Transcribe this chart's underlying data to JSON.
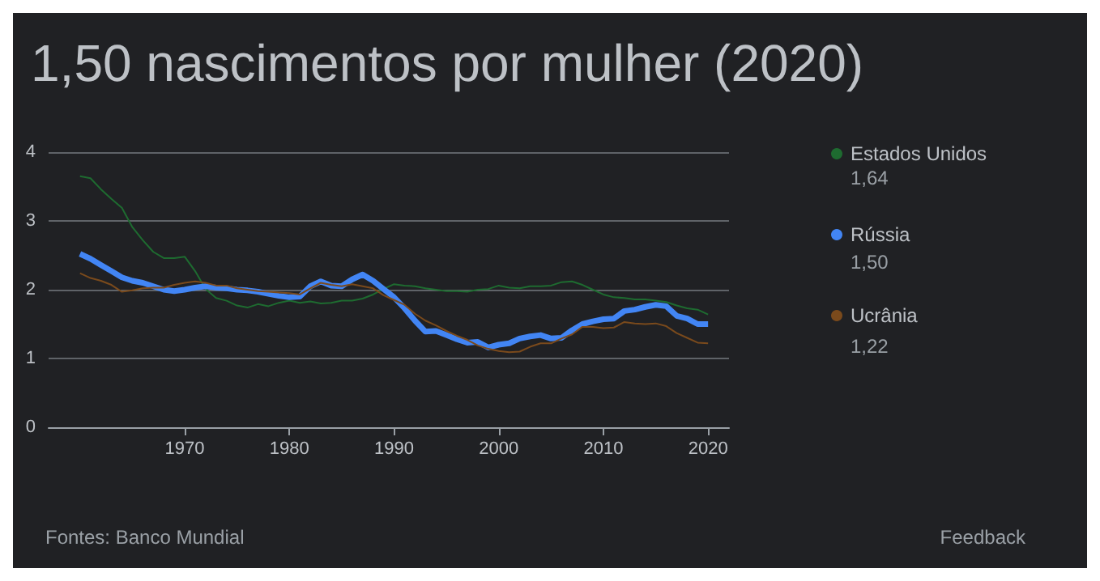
{
  "chart_data": {
    "type": "line",
    "title": "1,50 nascimentos por mulher (2020)",
    "x": [
      1960,
      1961,
      1962,
      1963,
      1964,
      1965,
      1966,
      1967,
      1968,
      1969,
      1970,
      1971,
      1972,
      1973,
      1974,
      1975,
      1976,
      1977,
      1978,
      1979,
      1980,
      1981,
      1982,
      1983,
      1984,
      1985,
      1986,
      1987,
      1988,
      1989,
      1990,
      1991,
      1992,
      1993,
      1994,
      1995,
      1996,
      1997,
      1998,
      1999,
      2000,
      2001,
      2002,
      2003,
      2004,
      2005,
      2006,
      2007,
      2008,
      2009,
      2010,
      2011,
      2012,
      2013,
      2014,
      2015,
      2016,
      2017,
      2018,
      2019,
      2020
    ],
    "series": [
      {
        "name": "Estados Unidos",
        "color": "#1e6b30",
        "values": [
          3.65,
          3.62,
          3.46,
          3.32,
          3.19,
          2.91,
          2.72,
          2.55,
          2.46,
          2.46,
          2.48,
          2.27,
          2.01,
          1.88,
          1.84,
          1.77,
          1.74,
          1.79,
          1.76,
          1.81,
          1.84,
          1.81,
          1.83,
          1.8,
          1.81,
          1.84,
          1.84,
          1.87,
          1.93,
          2.01,
          2.08,
          2.06,
          2.05,
          2.02,
          2.0,
          1.98,
          1.98,
          1.97,
          2.0,
          2.01,
          2.06,
          2.03,
          2.02,
          2.05,
          2.05,
          2.06,
          2.11,
          2.12,
          2.07,
          2.0,
          1.93,
          1.89,
          1.88,
          1.86,
          1.86,
          1.84,
          1.82,
          1.77,
          1.73,
          1.71,
          1.64
        ]
      },
      {
        "name": "Rússia",
        "color": "#4285f4",
        "values": [
          2.52,
          2.45,
          2.36,
          2.27,
          2.18,
          2.13,
          2.1,
          2.05,
          2.0,
          1.98,
          2.0,
          2.03,
          2.05,
          2.03,
          2.02,
          2.0,
          1.99,
          1.97,
          1.94,
          1.91,
          1.89,
          1.9,
          2.05,
          2.12,
          2.06,
          2.05,
          2.15,
          2.22,
          2.13,
          2.01,
          1.89,
          1.73,
          1.55,
          1.39,
          1.4,
          1.34,
          1.28,
          1.23,
          1.24,
          1.16,
          1.2,
          1.22,
          1.29,
          1.32,
          1.34,
          1.29,
          1.3,
          1.41,
          1.5,
          1.54,
          1.57,
          1.58,
          1.69,
          1.71,
          1.75,
          1.78,
          1.76,
          1.62,
          1.58,
          1.5,
          1.5
        ]
      },
      {
        "name": "Ucrânia",
        "color": "#7a4a1c",
        "values": [
          2.24,
          2.17,
          2.13,
          2.07,
          1.97,
          1.99,
          2.02,
          2.03,
          2.03,
          2.07,
          2.1,
          2.12,
          2.1,
          2.06,
          2.06,
          2.02,
          2.0,
          1.98,
          1.97,
          1.96,
          1.95,
          1.93,
          2.02,
          2.1,
          2.07,
          2.05,
          2.08,
          2.05,
          2.02,
          1.92,
          1.85,
          1.78,
          1.65,
          1.55,
          1.48,
          1.4,
          1.33,
          1.27,
          1.19,
          1.14,
          1.11,
          1.09,
          1.1,
          1.17,
          1.22,
          1.22,
          1.29,
          1.35,
          1.46,
          1.46,
          1.44,
          1.45,
          1.53,
          1.51,
          1.5,
          1.51,
          1.47,
          1.37,
          1.3,
          1.23,
          1.22
        ]
      }
    ],
    "xlim": [
      1957,
      2022
    ],
    "xticks": [
      1970,
      1980,
      1990,
      2000,
      2010,
      2020
    ],
    "ylim": [
      0,
      4
    ],
    "yticks": [
      0,
      1,
      2,
      3,
      4
    ],
    "grid": "y",
    "legend": "right",
    "marker": "none",
    "line_style": "solid",
    "annotations": [
      "1,64",
      "1,50",
      "1,22",
      "Fontes: Banco Mundial",
      "Feedback"
    ]
  }
}
